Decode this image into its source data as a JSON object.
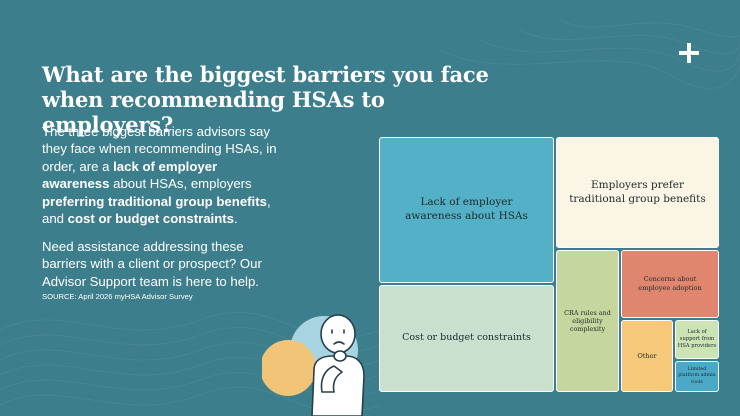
{
  "title": "What are the biggest barriers you face when recommending HSAs to employers?",
  "body": {
    "t1": "The three biggest barriers advisors say they face when recommending HSAs, in order, are a ",
    "b1": "lack of employer awareness",
    "t2": " about HSAs, employers ",
    "b2": "preferring traditional group benefits",
    "t3": ", and ",
    "b3": "cost or budget constraints",
    "t4": "."
  },
  "help_text": "Need assistance addressing these barriers with a client or prospect? Our Advisor Support team is here to help.",
  "source": "SOURCE: April 2026 myHSA Advisor Survey",
  "icons": {
    "logo": "plus-cross-logo-icon",
    "illustration": "thinking-person-icon"
  },
  "colors": {
    "background": "#3d7e8c",
    "teal": "#54b0c6",
    "cream": "#fbf5e6",
    "sage": "#c8e0cd",
    "green": "#c5d79e",
    "salmon": "#e0866f",
    "orange": "#f6c87a",
    "pale_green": "#cbe3b5",
    "blue": "#4aa9c7"
  },
  "chart_data": {
    "type": "treemap",
    "title": "",
    "order": "largest to smallest",
    "items": [
      {
        "label": "Lack of employer awareness about HSAs",
        "rank": 1
      },
      {
        "label": "Employers prefer traditional group benefits",
        "rank": 2
      },
      {
        "label": "Cost or budget constraints",
        "rank": 3
      },
      {
        "label": "CRA rules and eligibility complexity",
        "rank": 4
      },
      {
        "label": "Concerns about employee adoption",
        "rank": 5
      },
      {
        "label": "Other",
        "rank": 6
      },
      {
        "label": "Lack of support from HSA providers",
        "rank": 7
      },
      {
        "label": "Limited platform admin tools",
        "rank": 8
      }
    ]
  }
}
